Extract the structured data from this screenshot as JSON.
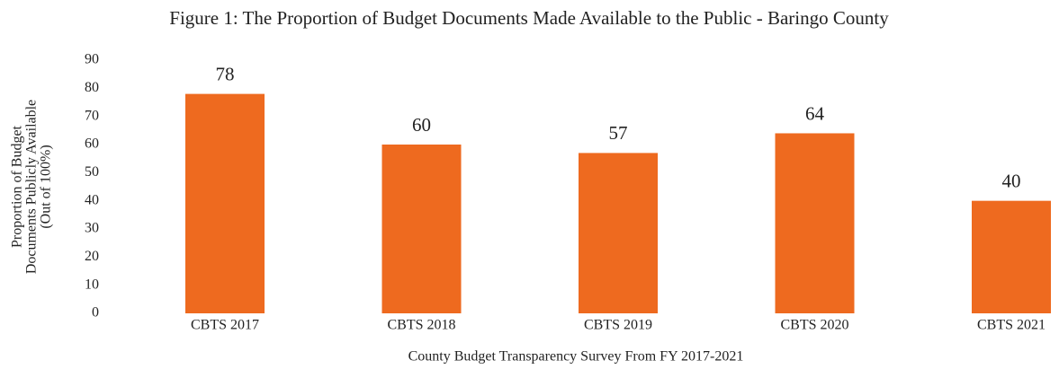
{
  "chart_data": {
    "type": "bar",
    "title": "Figure 1: The Proportion of Budget Documents Made Available to the Public - Baringo County",
    "ylabel": [
      "Proportion of Budget",
      "Documents Publicly Available",
      "(Out of 100%)"
    ],
    "xlabel": "County Budget Transparency Survey From FY 2017-2021",
    "categories": [
      "CBTS 2017",
      "CBTS 2018",
      "CBTS 2019",
      "CBTS 2020",
      "CBTS 2021"
    ],
    "values": [
      78,
      60,
      57,
      64,
      40
    ],
    "color": "#ee6a1f",
    "ylim": [
      0,
      90
    ],
    "yticks": [
      0,
      10,
      20,
      30,
      40,
      50,
      60,
      70,
      80,
      90
    ],
    "grid": false
  }
}
